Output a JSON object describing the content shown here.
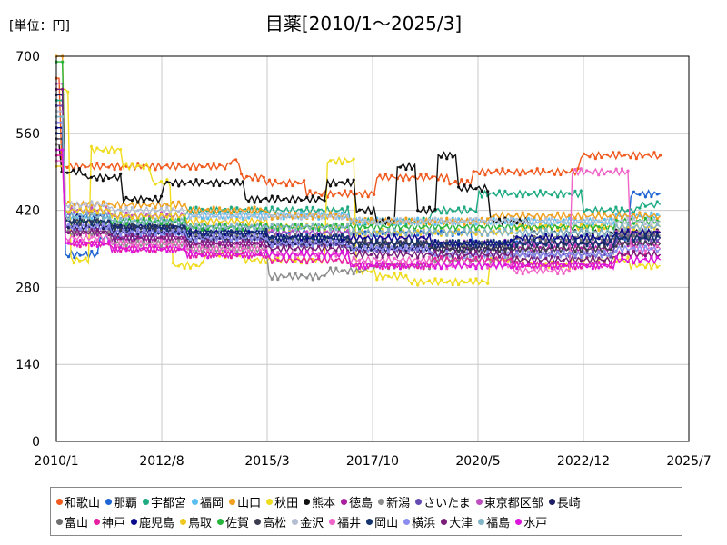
{
  "chart_data": {
    "type": "line",
    "title": "目薬[2010/1～2025/3]",
    "unit_label": "[単位：円]",
    "xlabel": "",
    "ylabel": "",
    "x_ticks": [
      "2010/1",
      "2012/8",
      "2015/3",
      "2017/10",
      "2020/5",
      "2022/12",
      "2025/7"
    ],
    "y_ticks": [
      "0",
      "140",
      "280",
      "420",
      "560",
      "700"
    ],
    "ylim": [
      0,
      700
    ],
    "xlim": [
      2010.0,
      2025.5
    ],
    "grid": true,
    "legend_position": "bottom",
    "series": [
      {
        "name": "和歌山",
        "color": "#f05a1e",
        "pts": [
          [
            2010.0,
            660
          ],
          [
            2010.2,
            500
          ],
          [
            2011.0,
            500
          ],
          [
            2012.5,
            500
          ],
          [
            2014.0,
            500
          ],
          [
            2014.4,
            510
          ],
          [
            2014.6,
            480
          ],
          [
            2015.5,
            470
          ],
          [
            2016.5,
            450
          ],
          [
            2017.5,
            450
          ],
          [
            2018.0,
            480
          ],
          [
            2019.0,
            480
          ],
          [
            2020.0,
            470
          ],
          [
            2020.3,
            490
          ],
          [
            2021.5,
            490
          ],
          [
            2022.5,
            490
          ],
          [
            2023.0,
            520
          ],
          [
            2024.0,
            520
          ],
          [
            2024.8,
            520
          ]
        ]
      },
      {
        "name": "那覇",
        "color": "#1e64d2",
        "pts": [
          [
            2010.0,
            600
          ],
          [
            2010.3,
            340
          ],
          [
            2011.5,
            370
          ],
          [
            2013.0,
            380
          ],
          [
            2015.0,
            380
          ],
          [
            2017.0,
            380
          ],
          [
            2019.0,
            380
          ],
          [
            2021.0,
            360
          ],
          [
            2023.0,
            370
          ],
          [
            2024.8,
            450
          ]
        ]
      },
      {
        "name": "宇都宮",
        "color": "#1eaa82",
        "pts": [
          [
            2010.0,
            620
          ],
          [
            2010.3,
            420
          ],
          [
            2012.0,
            410
          ],
          [
            2014.0,
            420
          ],
          [
            2016.0,
            420
          ],
          [
            2018.0,
            400
          ],
          [
            2020.0,
            420
          ],
          [
            2020.5,
            450
          ],
          [
            2022.0,
            450
          ],
          [
            2023.5,
            420
          ],
          [
            2024.8,
            430
          ]
        ]
      },
      {
        "name": "福岡",
        "color": "#5abef0",
        "pts": [
          [
            2010.0,
            590
          ],
          [
            2010.3,
            410
          ],
          [
            2012.0,
            400
          ],
          [
            2014.0,
            410
          ],
          [
            2016.0,
            410
          ],
          [
            2018.0,
            400
          ],
          [
            2020.0,
            400
          ],
          [
            2022.0,
            400
          ],
          [
            2024.8,
            410
          ]
        ]
      },
      {
        "name": "山口",
        "color": "#f0a01e",
        "pts": [
          [
            2010.0,
            700
          ],
          [
            2010.3,
            430
          ],
          [
            2012.0,
            430
          ],
          [
            2014.0,
            420
          ],
          [
            2016.0,
            410
          ],
          [
            2018.0,
            400
          ],
          [
            2020.0,
            400
          ],
          [
            2021.0,
            410
          ],
          [
            2023.0,
            410
          ],
          [
            2024.8,
            410
          ]
        ]
      },
      {
        "name": "秋田",
        "color": "#f0dc1e",
        "pts": [
          [
            2010.0,
            640
          ],
          [
            2010.5,
            330
          ],
          [
            2011.0,
            530
          ],
          [
            2012.0,
            500
          ],
          [
            2012.5,
            470
          ],
          [
            2013.0,
            320
          ],
          [
            2014.0,
            340
          ],
          [
            2015.0,
            330
          ],
          [
            2016.0,
            330
          ],
          [
            2017.0,
            510
          ],
          [
            2017.5,
            310
          ],
          [
            2018.0,
            300
          ],
          [
            2019.0,
            290
          ],
          [
            2020.0,
            290
          ],
          [
            2021.0,
            330
          ],
          [
            2022.0,
            320
          ],
          [
            2023.0,
            330
          ],
          [
            2024.8,
            320
          ]
        ]
      },
      {
        "name": "熊本",
        "color": "#111111",
        "pts": [
          [
            2010.0,
            540
          ],
          [
            2010.2,
            490
          ],
          [
            2011.0,
            480
          ],
          [
            2012.0,
            440
          ],
          [
            2013.0,
            470
          ],
          [
            2014.0,
            470
          ],
          [
            2015.0,
            440
          ],
          [
            2016.0,
            440
          ],
          [
            2017.0,
            470
          ],
          [
            2017.5,
            420
          ],
          [
            2018.0,
            400
          ],
          [
            2018.5,
            500
          ],
          [
            2019.0,
            420
          ],
          [
            2019.5,
            520
          ],
          [
            2020.0,
            460
          ],
          [
            2021.0,
            400
          ],
          [
            2022.0,
            380
          ],
          [
            2023.0,
            380
          ],
          [
            2024.8,
            380
          ]
        ]
      },
      {
        "name": "徳島",
        "color": "#aa1ea0",
        "pts": [
          [
            2010.0,
            560
          ],
          [
            2010.3,
            380
          ],
          [
            2012.0,
            370
          ],
          [
            2014.0,
            360
          ],
          [
            2016.0,
            360
          ],
          [
            2018.0,
            360
          ],
          [
            2020.0,
            350
          ],
          [
            2022.0,
            350
          ],
          [
            2024.8,
            360
          ]
        ]
      },
      {
        "name": "新潟",
        "color": "#8c8c8c",
        "pts": [
          [
            2010.0,
            540
          ],
          [
            2010.3,
            380
          ],
          [
            2012.0,
            360
          ],
          [
            2014.0,
            350
          ],
          [
            2016.0,
            300
          ],
          [
            2017.0,
            310
          ],
          [
            2018.0,
            320
          ],
          [
            2020.0,
            330
          ],
          [
            2022.0,
            340
          ],
          [
            2024.8,
            380
          ]
        ]
      },
      {
        "name": "さいたま",
        "color": "#644bb4",
        "pts": [
          [
            2010.0,
            610
          ],
          [
            2010.3,
            390
          ],
          [
            2012.0,
            380
          ],
          [
            2014.0,
            370
          ],
          [
            2016.0,
            360
          ],
          [
            2018.0,
            350
          ],
          [
            2020.0,
            340
          ],
          [
            2022.0,
            340
          ],
          [
            2024.8,
            370
          ]
        ]
      },
      {
        "name": "東京都区部",
        "color": "#be50be",
        "pts": [
          [
            2010.0,
            650
          ],
          [
            2010.3,
            420
          ],
          [
            2012.0,
            410
          ],
          [
            2014.0,
            390
          ],
          [
            2016.0,
            380
          ],
          [
            2018.0,
            370
          ],
          [
            2020.0,
            360
          ],
          [
            2022.0,
            360
          ],
          [
            2024.8,
            380
          ]
        ]
      },
      {
        "name": "長崎",
        "color": "#1e1e64",
        "pts": [
          [
            2010.0,
            630
          ],
          [
            2010.3,
            390
          ],
          [
            2012.0,
            380
          ],
          [
            2014.0,
            370
          ],
          [
            2016.0,
            360
          ],
          [
            2018.0,
            350
          ],
          [
            2020.0,
            350
          ],
          [
            2022.0,
            360
          ],
          [
            2024.8,
            370
          ]
        ]
      },
      {
        "name": "富山",
        "color": "#6e6e6e",
        "pts": [
          [
            2010.0,
            580
          ],
          [
            2010.3,
            400
          ],
          [
            2012.0,
            390
          ],
          [
            2014.0,
            380
          ],
          [
            2016.0,
            370
          ],
          [
            2018.0,
            360
          ],
          [
            2020.0,
            360
          ],
          [
            2022.0,
            370
          ],
          [
            2024.8,
            375
          ]
        ]
      },
      {
        "name": "神戸",
        "color": "#e61ea0",
        "pts": [
          [
            2010.0,
            520
          ],
          [
            2010.3,
            360
          ],
          [
            2012.0,
            350
          ],
          [
            2014.0,
            340
          ],
          [
            2016.0,
            330
          ],
          [
            2018.0,
            320
          ],
          [
            2020.0,
            330
          ],
          [
            2022.0,
            320
          ],
          [
            2024.8,
            340
          ]
        ]
      },
      {
        "name": "鹿児島",
        "color": "#0a0a8c",
        "pts": [
          [
            2010.0,
            570
          ],
          [
            2010.3,
            410
          ],
          [
            2012.0,
            390
          ],
          [
            2014.0,
            380
          ],
          [
            2016.0,
            370
          ],
          [
            2018.0,
            370
          ],
          [
            2020.0,
            360
          ],
          [
            2022.0,
            370
          ],
          [
            2024.8,
            380
          ]
        ]
      },
      {
        "name": "鳥取",
        "color": "#f0c81e",
        "pts": [
          [
            2010.0,
            500
          ],
          [
            2010.3,
            420
          ],
          [
            2012.0,
            410
          ],
          [
            2014.0,
            400
          ],
          [
            2016.0,
            390
          ],
          [
            2018.0,
            380
          ],
          [
            2020.0,
            380
          ],
          [
            2022.0,
            390
          ],
          [
            2024.8,
            390
          ]
        ]
      },
      {
        "name": "佐賀",
        "color": "#28b43c",
        "pts": [
          [
            2010.0,
            690
          ],
          [
            2010.3,
            400
          ],
          [
            2012.0,
            400
          ],
          [
            2014.0,
            390
          ],
          [
            2016.0,
            390
          ],
          [
            2018.0,
            390
          ],
          [
            2020.0,
            390
          ],
          [
            2022.0,
            390
          ],
          [
            2024.8,
            400
          ]
        ]
      },
      {
        "name": "高松",
        "color": "#3c3c50",
        "pts": [
          [
            2010.0,
            550
          ],
          [
            2010.3,
            400
          ],
          [
            2012.0,
            390
          ],
          [
            2014.0,
            370
          ],
          [
            2016.0,
            360
          ],
          [
            2018.0,
            360
          ],
          [
            2020.0,
            350
          ],
          [
            2022.0,
            350
          ],
          [
            2024.8,
            360
          ]
        ]
      },
      {
        "name": "金沢",
        "color": "#b4bed2",
        "pts": [
          [
            2010.0,
            600
          ],
          [
            2010.3,
            430
          ],
          [
            2012.0,
            420
          ],
          [
            2014.0,
            410
          ],
          [
            2016.0,
            410
          ],
          [
            2018.0,
            400
          ],
          [
            2020.0,
            400
          ],
          [
            2022.0,
            400
          ],
          [
            2024.8,
            400
          ]
        ]
      },
      {
        "name": "福井",
        "color": "#f064c8",
        "pts": [
          [
            2010.0,
            510
          ],
          [
            2010.3,
            370
          ],
          [
            2012.0,
            360
          ],
          [
            2014.0,
            350
          ],
          [
            2016.0,
            340
          ],
          [
            2018.0,
            330
          ],
          [
            2020.0,
            320
          ],
          [
            2022.0,
            310
          ],
          [
            2023.0,
            490
          ],
          [
            2024.8,
            350
          ]
        ]
      },
      {
        "name": "岡山",
        "color": "#14326e",
        "pts": [
          [
            2010.0,
            560
          ],
          [
            2010.3,
            400
          ],
          [
            2012.0,
            390
          ],
          [
            2014.0,
            380
          ],
          [
            2016.0,
            370
          ],
          [
            2018.0,
            360
          ],
          [
            2020.0,
            360
          ],
          [
            2022.0,
            360
          ],
          [
            2024.8,
            370
          ]
        ]
      },
      {
        "name": "横浜",
        "color": "#8c8cf0",
        "pts": [
          [
            2010.0,
            580
          ],
          [
            2010.3,
            390
          ],
          [
            2012.0,
            380
          ],
          [
            2014.0,
            370
          ],
          [
            2016.0,
            360
          ],
          [
            2018.0,
            350
          ],
          [
            2020.0,
            340
          ],
          [
            2022.0,
            340
          ],
          [
            2024.8,
            350
          ]
        ]
      },
      {
        "name": "大津",
        "color": "#781e78",
        "pts": [
          [
            2010.0,
            640
          ],
          [
            2010.3,
            380
          ],
          [
            2012.0,
            370
          ],
          [
            2014.0,
            360
          ],
          [
            2016.0,
            350
          ],
          [
            2018.0,
            340
          ],
          [
            2020.0,
            340
          ],
          [
            2022.0,
            330
          ],
          [
            2024.8,
            340
          ]
        ]
      },
      {
        "name": "福島",
        "color": "#82b4c8",
        "pts": [
          [
            2010.0,
            590
          ],
          [
            2010.3,
            410
          ],
          [
            2012.0,
            400
          ],
          [
            2014.0,
            390
          ],
          [
            2016.0,
            390
          ],
          [
            2018.0,
            380
          ],
          [
            2020.0,
            380
          ],
          [
            2022.0,
            380
          ],
          [
            2024.8,
            390
          ]
        ]
      },
      {
        "name": "水戸",
        "color": "#dc14dc",
        "pts": [
          [
            2010.0,
            530
          ],
          [
            2010.3,
            360
          ],
          [
            2012.0,
            350
          ],
          [
            2014.0,
            340
          ],
          [
            2016.0,
            340
          ],
          [
            2018.0,
            320
          ],
          [
            2020.0,
            320
          ],
          [
            2022.0,
            320
          ],
          [
            2024.8,
            330
          ]
        ]
      }
    ]
  }
}
